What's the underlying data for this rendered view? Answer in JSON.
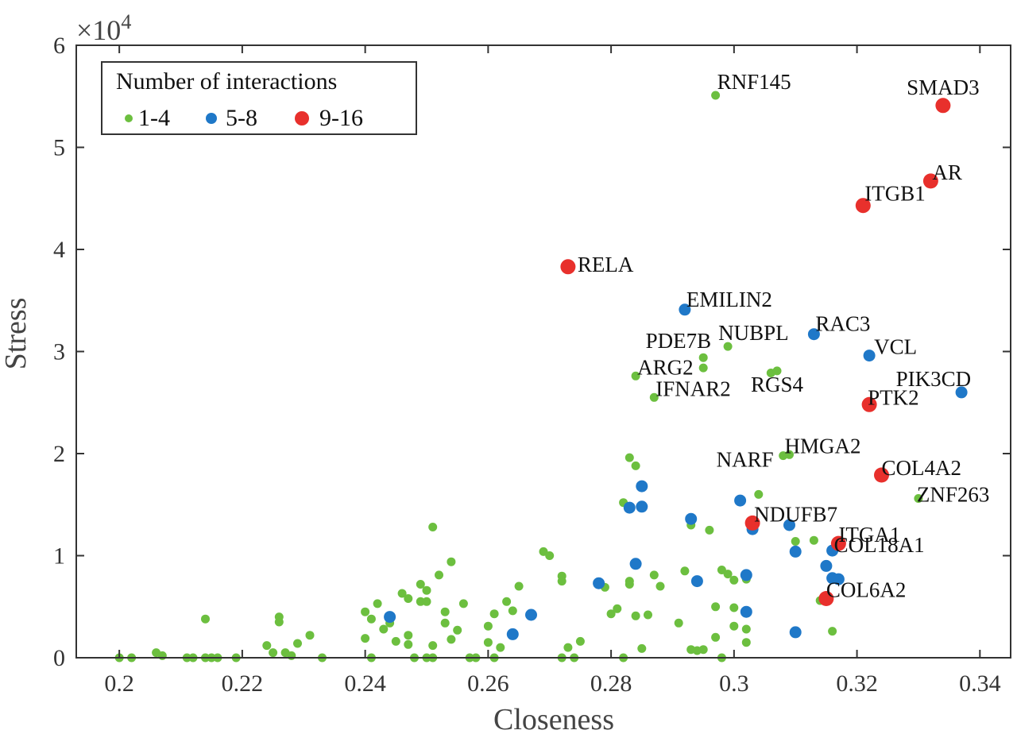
{
  "chart_data": {
    "type": "scatter",
    "xlabel": "Closeness",
    "ylabel": "Stress",
    "y_multiplier_label": "×10",
    "y_multiplier_exp": "4",
    "xlim": [
      0.193,
      0.345
    ],
    "ylim": [
      0,
      60000
    ],
    "x_ticks": [
      0.2,
      0.22,
      0.24,
      0.26,
      0.28,
      0.3,
      0.32,
      0.34
    ],
    "x_tick_labels": [
      "0.2",
      "0.22",
      "0.24",
      "0.26",
      "0.28",
      "0.3",
      "0.32",
      "0.34"
    ],
    "y_ticks": [
      0,
      10000,
      20000,
      30000,
      40000,
      50000,
      60000
    ],
    "y_tick_labels": [
      "0",
      "1",
      "2",
      "3",
      "4",
      "5",
      "6"
    ],
    "legend": {
      "title": "Number of interactions",
      "position": "top-left",
      "entries": [
        "1-4",
        "5-8",
        "9-16"
      ]
    },
    "colors": {
      "1-4": "#6cbf3f",
      "5-8": "#1f78c8",
      "9-16": "#e8302c"
    },
    "series": [
      {
        "name": "1-4",
        "points": [
          [
            0.2,
            0
          ],
          [
            0.202,
            0
          ],
          [
            0.206,
            500
          ],
          [
            0.207,
            200
          ],
          [
            0.211,
            0
          ],
          [
            0.212,
            0
          ],
          [
            0.214,
            0
          ],
          [
            0.215,
            0
          ],
          [
            0.216,
            0
          ],
          [
            0.214,
            3800
          ],
          [
            0.219,
            0
          ],
          [
            0.224,
            1200
          ],
          [
            0.225,
            500
          ],
          [
            0.226,
            3500
          ],
          [
            0.226,
            4000
          ],
          [
            0.227,
            500
          ],
          [
            0.228,
            200
          ],
          [
            0.229,
            1400
          ],
          [
            0.231,
            2200
          ],
          [
            0.233,
            0
          ],
          [
            0.24,
            1900
          ],
          [
            0.24,
            4500
          ],
          [
            0.241,
            3800
          ],
          [
            0.241,
            0
          ],
          [
            0.242,
            5300
          ],
          [
            0.243,
            2800
          ],
          [
            0.244,
            3400
          ],
          [
            0.245,
            1600
          ],
          [
            0.246,
            6300
          ],
          [
            0.247,
            2200
          ],
          [
            0.247,
            5800
          ],
          [
            0.247,
            1300
          ],
          [
            0.248,
            0
          ],
          [
            0.249,
            7200
          ],
          [
            0.249,
            5500
          ],
          [
            0.25,
            5500
          ],
          [
            0.25,
            6600
          ],
          [
            0.251,
            12800
          ],
          [
            0.251,
            1200
          ],
          [
            0.252,
            8100
          ],
          [
            0.253,
            4500
          ],
          [
            0.253,
            3400
          ],
          [
            0.254,
            9400
          ],
          [
            0.254,
            1800
          ],
          [
            0.255,
            2700
          ],
          [
            0.256,
            5300
          ],
          [
            0.25,
            0
          ],
          [
            0.251,
            0
          ],
          [
            0.257,
            0
          ],
          [
            0.258,
            0
          ],
          [
            0.26,
            1500
          ],
          [
            0.26,
            3100
          ],
          [
            0.261,
            4300
          ],
          [
            0.261,
            0
          ],
          [
            0.262,
            1000
          ],
          [
            0.263,
            5500
          ],
          [
            0.264,
            4600
          ],
          [
            0.265,
            7000
          ],
          [
            0.269,
            10400
          ],
          [
            0.27,
            10000
          ],
          [
            0.272,
            8000
          ],
          [
            0.272,
            7500
          ],
          [
            0.273,
            1000
          ],
          [
            0.274,
            0
          ],
          [
            0.275,
            1600
          ],
          [
            0.272,
            0
          ],
          [
            0.279,
            6900
          ],
          [
            0.28,
            4300
          ],
          [
            0.281,
            4800
          ],
          [
            0.282,
            0
          ],
          [
            0.282,
            15200
          ],
          [
            0.283,
            7200
          ],
          [
            0.284,
            4100
          ],
          [
            0.283,
            7500
          ],
          [
            0.286,
            4200
          ],
          [
            0.287,
            8100
          ],
          [
            0.288,
            7000
          ],
          [
            0.283,
            19600
          ],
          [
            0.284,
            18800
          ],
          [
            0.285,
            900
          ],
          [
            0.291,
            3400
          ],
          [
            0.292,
            8500
          ],
          [
            0.293,
            13000
          ],
          [
            0.293,
            800
          ],
          [
            0.294,
            700
          ],
          [
            0.295,
            800
          ],
          [
            0.296,
            12500
          ],
          [
            0.297,
            5000
          ],
          [
            0.297,
            2000
          ],
          [
            0.298,
            8600
          ],
          [
            0.298,
            0
          ],
          [
            0.299,
            8200
          ],
          [
            0.3,
            7600
          ],
          [
            0.3,
            4900
          ],
          [
            0.3,
            3100
          ],
          [
            0.302,
            7700
          ],
          [
            0.302,
            1500
          ],
          [
            0.302,
            2800
          ],
          [
            0.304,
            16000
          ],
          [
            0.31,
            11400
          ],
          [
            0.313,
            11500
          ],
          [
            0.314,
            5600
          ],
          [
            0.316,
            2600
          ],
          [
            0.287,
            25500
          ],
          [
            0.284,
            27600
          ],
          [
            0.295,
            29400
          ],
          [
            0.295,
            28400
          ],
          [
            0.299,
            30500
          ],
          [
            0.306,
            27900
          ],
          [
            0.307,
            28100
          ],
          [
            0.308,
            19800
          ],
          [
            0.309,
            19900
          ],
          [
            0.33,
            15600
          ],
          [
            0.297,
            55100
          ]
        ]
      },
      {
        "name": "5-8",
        "points": [
          [
            0.244,
            4000
          ],
          [
            0.264,
            2300
          ],
          [
            0.267,
            4200
          ],
          [
            0.278,
            7300
          ],
          [
            0.283,
            14700
          ],
          [
            0.284,
            9200
          ],
          [
            0.285,
            16800
          ],
          [
            0.285,
            14800
          ],
          [
            0.293,
            13600
          ],
          [
            0.294,
            7500
          ],
          [
            0.301,
            15400
          ],
          [
            0.302,
            4500
          ],
          [
            0.302,
            8100
          ],
          [
            0.303,
            12600
          ],
          [
            0.309,
            13000
          ],
          [
            0.31,
            10400
          ],
          [
            0.31,
            2500
          ],
          [
            0.315,
            9000
          ],
          [
            0.316,
            7800
          ],
          [
            0.317,
            7700
          ],
          [
            0.316,
            10500
          ],
          [
            0.315,
            5700
          ],
          [
            0.292,
            34100
          ],
          [
            0.313,
            31700
          ],
          [
            0.322,
            29600
          ],
          [
            0.337,
            26000
          ]
        ]
      },
      {
        "name": "9-16",
        "points": [
          [
            0.273,
            38300
          ],
          [
            0.334,
            54100
          ],
          [
            0.332,
            46700
          ],
          [
            0.321,
            44300
          ],
          [
            0.322,
            24800
          ],
          [
            0.324,
            17900
          ],
          [
            0.303,
            13200
          ],
          [
            0.317,
            11200
          ],
          [
            0.315,
            5800
          ]
        ]
      }
    ],
    "labeled_points": [
      {
        "text": "RNF145",
        "x": 0.297,
        "y": 55100,
        "anchor": "start",
        "dx": 2,
        "dy": -8
      },
      {
        "text": "SMAD3",
        "x": 0.334,
        "y": 54100,
        "anchor": "middle",
        "dx": 0,
        "dy": -14
      },
      {
        "text": "AR",
        "x": 0.332,
        "y": 46700,
        "anchor": "start",
        "dx": 2,
        "dy": -2
      },
      {
        "text": "ITGB1",
        "x": 0.321,
        "y": 44300,
        "anchor": "start",
        "dx": 2,
        "dy": -6
      },
      {
        "text": "RELA",
        "x": 0.273,
        "y": 38300,
        "anchor": "start",
        "dx": 12,
        "dy": 6
      },
      {
        "text": "EMILIN2",
        "x": 0.292,
        "y": 34100,
        "anchor": "start",
        "dx": 2,
        "dy": -4
      },
      {
        "text": "RAC3",
        "x": 0.313,
        "y": 31700,
        "anchor": "start",
        "dx": 2,
        "dy": -4
      },
      {
        "text": "NUBPL",
        "x": 0.299,
        "y": 30500,
        "anchor": "start",
        "dx": -12,
        "dy": -8
      },
      {
        "text": "PDE7B",
        "x": 0.295,
        "y": 29400,
        "anchor": "end",
        "dx": 10,
        "dy": -12
      },
      {
        "text": "VCL",
        "x": 0.322,
        "y": 29600,
        "anchor": "start",
        "dx": 6,
        "dy": -2
      },
      {
        "text": "ARG2",
        "x": 0.284,
        "y": 27600,
        "anchor": "start",
        "dx": 2,
        "dy": -2
      },
      {
        "text": "PIK3CD",
        "x": 0.337,
        "y": 26000,
        "anchor": "end",
        "dx": 12,
        "dy": -8
      },
      {
        "text": "RGS4",
        "x": 0.307,
        "y": 28100,
        "anchor": "middle",
        "dx": 0,
        "dy": 26
      },
      {
        "text": "IFNAR2",
        "x": 0.287,
        "y": 25500,
        "anchor": "start",
        "dx": 2,
        "dy": -2
      },
      {
        "text": "PTK2",
        "x": 0.322,
        "y": 24800,
        "anchor": "start",
        "dx": -2,
        "dy": 0
      },
      {
        "text": "HMGA2",
        "x": 0.309,
        "y": 19900,
        "anchor": "start",
        "dx": -6,
        "dy": -2
      },
      {
        "text": "NARF",
        "x": 0.308,
        "y": 19800,
        "anchor": "end",
        "dx": -12,
        "dy": 14
      },
      {
        "text": "COL4A2",
        "x": 0.324,
        "y": 17900,
        "anchor": "start",
        "dx": 0,
        "dy": 0
      },
      {
        "text": "ZNF263",
        "x": 0.33,
        "y": 15600,
        "anchor": "start",
        "dx": -2,
        "dy": 4
      },
      {
        "text": "NDUFB7",
        "x": 0.303,
        "y": 13200,
        "anchor": "start",
        "dx": 2,
        "dy": -2
      },
      {
        "text": "ITGA1",
        "x": 0.317,
        "y": 11200,
        "anchor": "start",
        "dx": 0,
        "dy": -2
      },
      {
        "text": "COL18A1",
        "x": 0.316,
        "y": 10500,
        "anchor": "start",
        "dx": 2,
        "dy": 2
      },
      {
        "text": "COL6A2",
        "x": 0.315,
        "y": 5800,
        "anchor": "start",
        "dx": 0,
        "dy": -2
      }
    ]
  }
}
